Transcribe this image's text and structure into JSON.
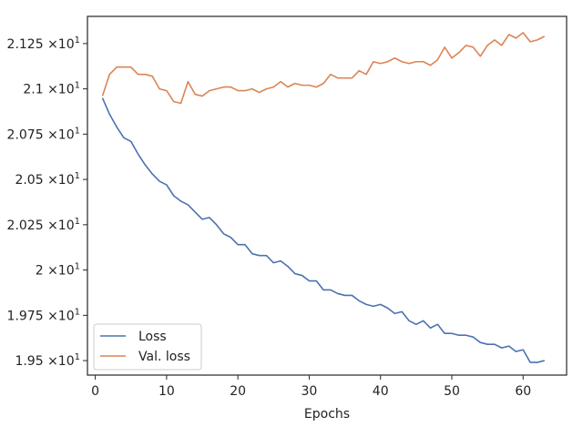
{
  "chart_data": {
    "type": "line",
    "title": "",
    "xlabel": "Epochs",
    "ylabel": "",
    "xlim": [
      -1.1,
      66.1
    ],
    "ylim": [
      19.42,
      21.4
    ],
    "xticks": [
      0,
      10,
      20,
      30,
      40,
      50,
      60
    ],
    "xtick_labels": [
      "0",
      "10",
      "20",
      "30",
      "40",
      "50",
      "60"
    ],
    "yticks": [
      19.5,
      19.75,
      20.0,
      20.25,
      20.5,
      20.75,
      21.0,
      21.25
    ],
    "ytick_mantissas": [
      "1.95",
      "1.975",
      "2",
      "2.025",
      "2.05",
      "2.075",
      "2.1",
      "2.125"
    ],
    "ytick_base": "×10",
    "ytick_exponent": "1",
    "grid": false,
    "legend_position": "lower-left",
    "x": [
      1,
      2,
      3,
      4,
      5,
      6,
      7,
      8,
      9,
      10,
      11,
      12,
      13,
      14,
      15,
      16,
      17,
      18,
      19,
      20,
      21,
      22,
      23,
      24,
      25,
      26,
      27,
      28,
      29,
      30,
      31,
      32,
      33,
      34,
      35,
      36,
      37,
      38,
      39,
      40,
      41,
      42,
      43,
      44,
      45,
      46,
      47,
      48,
      49,
      50,
      51,
      52,
      53,
      54,
      55,
      56,
      57,
      58,
      59,
      60,
      61,
      62,
      63
    ],
    "series": [
      {
        "name": "Loss",
        "color": "#4c72b0",
        "values": [
          20.95,
          20.86,
          20.79,
          20.73,
          20.71,
          20.64,
          20.58,
          20.53,
          20.49,
          20.47,
          20.41,
          20.38,
          20.36,
          20.32,
          20.28,
          20.29,
          20.25,
          20.2,
          20.18,
          20.14,
          20.14,
          20.09,
          20.08,
          20.08,
          20.04,
          20.05,
          20.02,
          19.98,
          19.97,
          19.94,
          19.94,
          19.89,
          19.89,
          19.87,
          19.86,
          19.86,
          19.83,
          19.81,
          19.8,
          19.81,
          19.79,
          19.76,
          19.77,
          19.72,
          19.7,
          19.72,
          19.68,
          19.7,
          19.65,
          19.65,
          19.64,
          19.64,
          19.63,
          19.6,
          19.59,
          19.59,
          19.57,
          19.58,
          19.55,
          19.56,
          19.49,
          19.49,
          19.5
        ]
      },
      {
        "name": "Val. loss",
        "color": "#dd8452",
        "values": [
          20.96,
          21.08,
          21.12,
          21.12,
          21.12,
          21.08,
          21.08,
          21.07,
          21.0,
          20.99,
          20.93,
          20.92,
          21.04,
          20.97,
          20.96,
          20.99,
          21.0,
          21.01,
          21.01,
          20.99,
          20.99,
          21.0,
          20.98,
          21.0,
          21.01,
          21.04,
          21.01,
          21.03,
          21.02,
          21.02,
          21.01,
          21.03,
          21.08,
          21.06,
          21.06,
          21.06,
          21.1,
          21.08,
          21.15,
          21.14,
          21.15,
          21.17,
          21.15,
          21.14,
          21.15,
          21.15,
          21.13,
          21.16,
          21.23,
          21.17,
          21.2,
          21.24,
          21.23,
          21.18,
          21.24,
          21.27,
          21.24,
          21.3,
          21.28,
          21.31,
          21.26,
          21.27,
          21.29
        ]
      }
    ]
  }
}
